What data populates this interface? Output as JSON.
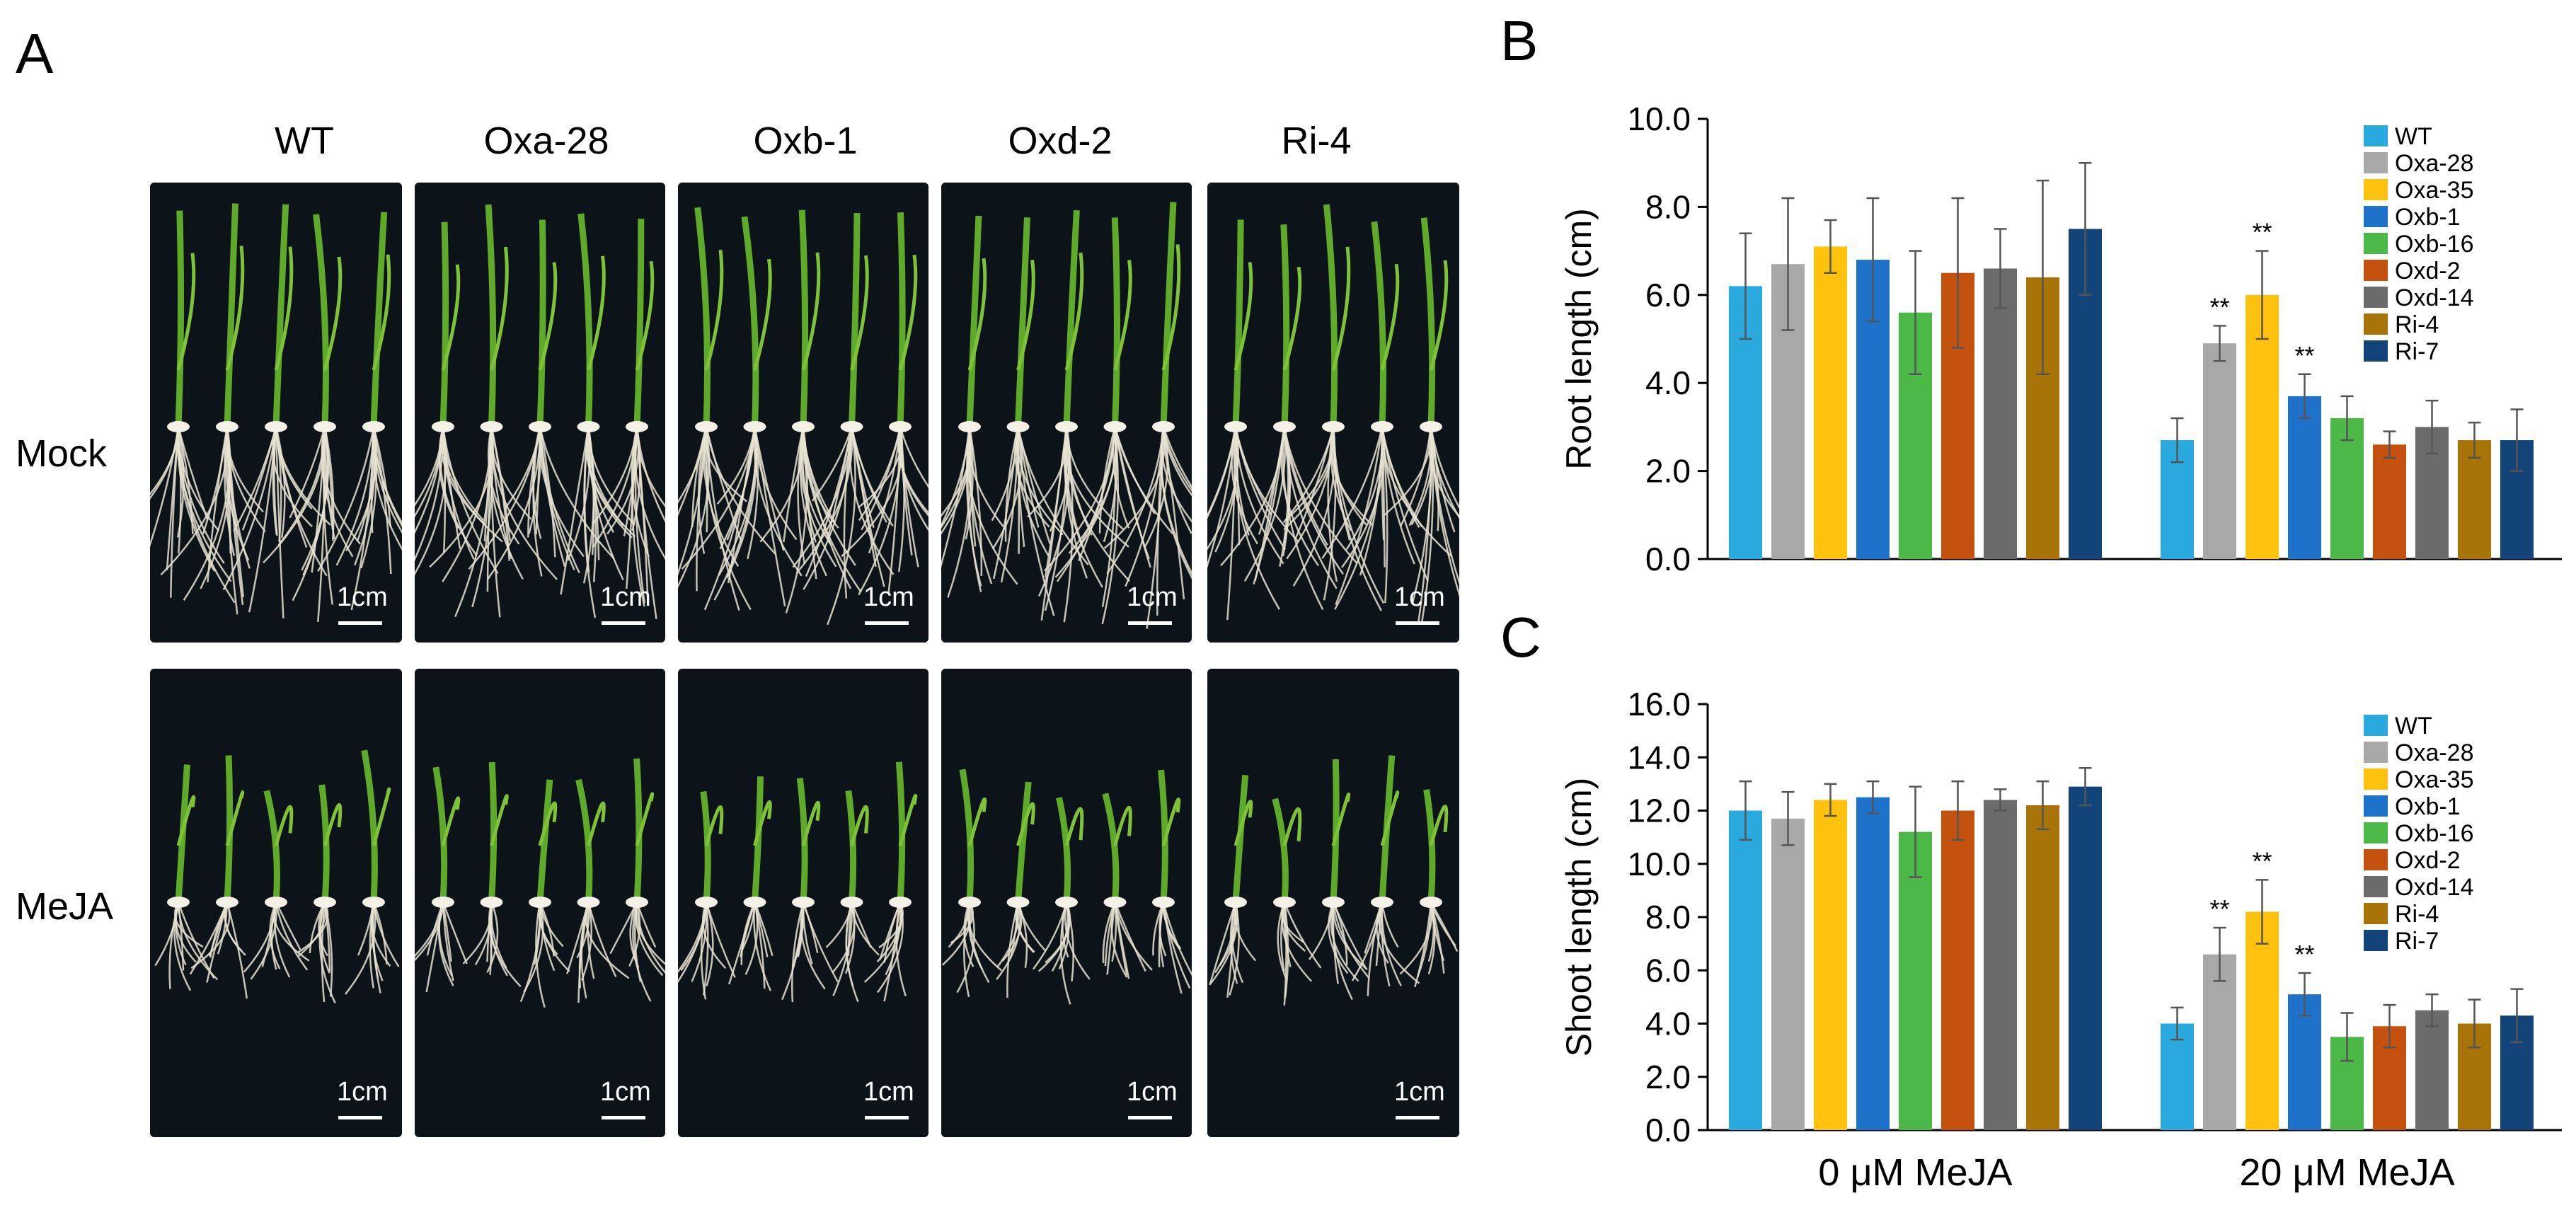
{
  "panel_labels": {
    "a": "A",
    "b": "B",
    "c": "C"
  },
  "photos": {
    "columns": [
      "WT",
      "Oxa-28",
      "Oxb-1",
      "Oxd-2",
      "Ri-4"
    ],
    "rows": [
      "Mock",
      "MeJA"
    ],
    "scale_bar": "1cm"
  },
  "colors": {
    "WT": "#2aa9df",
    "Oxa-28": "#a8a8a8",
    "Oxa-35": "#ffc20e",
    "Oxb-1": "#1f72c9",
    "Oxb-16": "#4cb848",
    "Oxd-2": "#c4510d",
    "Oxd-14": "#6b6b6b",
    "Ri-4": "#a87408",
    "Ri-7": "#12447a"
  },
  "chart_data": [
    {
      "type": "bar",
      "id": "B",
      "ylabel": "Root length (cm)",
      "ylim": [
        0,
        10
      ],
      "yticks": [
        "0.0",
        "2.0",
        "4.0",
        "6.0",
        "8.0",
        "10.0"
      ],
      "categories": [
        "0 μM MeJA",
        "20 μM MeJA"
      ],
      "series": [
        {
          "name": "WT",
          "values": [
            6.2,
            2.7
          ],
          "err": [
            1.2,
            0.5
          ],
          "sig": [
            "",
            ""
          ]
        },
        {
          "name": "Oxa-28",
          "values": [
            6.7,
            4.9
          ],
          "err": [
            1.5,
            0.4
          ],
          "sig": [
            "",
            "**"
          ]
        },
        {
          "name": "Oxa-35",
          "values": [
            7.1,
            6.0
          ],
          "err": [
            0.6,
            1.0
          ],
          "sig": [
            "",
            "**"
          ]
        },
        {
          "name": "Oxb-1",
          "values": [
            6.8,
            3.7
          ],
          "err": [
            1.4,
            0.5
          ],
          "sig": [
            "",
            "**"
          ]
        },
        {
          "name": "Oxb-16",
          "values": [
            5.6,
            3.2
          ],
          "err": [
            1.4,
            0.5
          ],
          "sig": [
            "",
            ""
          ]
        },
        {
          "name": "Oxd-2",
          "values": [
            6.5,
            2.6
          ],
          "err": [
            1.7,
            0.3
          ],
          "sig": [
            "",
            ""
          ]
        },
        {
          "name": "Oxd-14",
          "values": [
            6.6,
            3.0
          ],
          "err": [
            0.9,
            0.6
          ],
          "sig": [
            "",
            ""
          ]
        },
        {
          "name": "Ri-4",
          "values": [
            6.4,
            2.7
          ],
          "err": [
            2.2,
            0.4
          ],
          "sig": [
            "",
            ""
          ]
        },
        {
          "name": "Ri-7",
          "values": [
            7.5,
            2.7
          ],
          "err": [
            1.5,
            0.7
          ],
          "sig": [
            "",
            ""
          ]
        }
      ],
      "legend": "top-right"
    },
    {
      "type": "bar",
      "id": "C",
      "ylabel": "Shoot length (cm)",
      "ylim": [
        0,
        16
      ],
      "yticks": [
        "0.0",
        "2.0",
        "4.0",
        "6.0",
        "8.0",
        "10.0",
        "12.0",
        "14.0",
        "16.0"
      ],
      "categories": [
        "0 μM MeJA",
        "20 μM MeJA"
      ],
      "series": [
        {
          "name": "WT",
          "values": [
            12.0,
            4.0
          ],
          "err": [
            1.1,
            0.6
          ],
          "sig": [
            "",
            ""
          ]
        },
        {
          "name": "Oxa-28",
          "values": [
            11.7,
            6.6
          ],
          "err": [
            1.0,
            1.0
          ],
          "sig": [
            "",
            "**"
          ]
        },
        {
          "name": "Oxa-35",
          "values": [
            12.4,
            8.2
          ],
          "err": [
            0.6,
            1.2
          ],
          "sig": [
            "",
            "**"
          ]
        },
        {
          "name": "Oxb-1",
          "values": [
            12.5,
            5.1
          ],
          "err": [
            0.6,
            0.8
          ],
          "sig": [
            "",
            "**"
          ]
        },
        {
          "name": "Oxb-16",
          "values": [
            11.2,
            3.5
          ],
          "err": [
            1.7,
            0.9
          ],
          "sig": [
            "",
            ""
          ]
        },
        {
          "name": "Oxd-2",
          "values": [
            12.0,
            3.9
          ],
          "err": [
            1.1,
            0.8
          ],
          "sig": [
            "",
            ""
          ]
        },
        {
          "name": "Oxd-14",
          "values": [
            12.4,
            4.5
          ],
          "err": [
            0.4,
            0.6
          ],
          "sig": [
            "",
            ""
          ]
        },
        {
          "name": "Ri-4",
          "values": [
            12.2,
            4.0
          ],
          "err": [
            0.9,
            0.9
          ],
          "sig": [
            "",
            ""
          ]
        },
        {
          "name": "Ri-7",
          "values": [
            12.9,
            4.3
          ],
          "err": [
            0.7,
            1.0
          ],
          "sig": [
            "",
            ""
          ]
        }
      ],
      "legend": "top-right"
    }
  ]
}
